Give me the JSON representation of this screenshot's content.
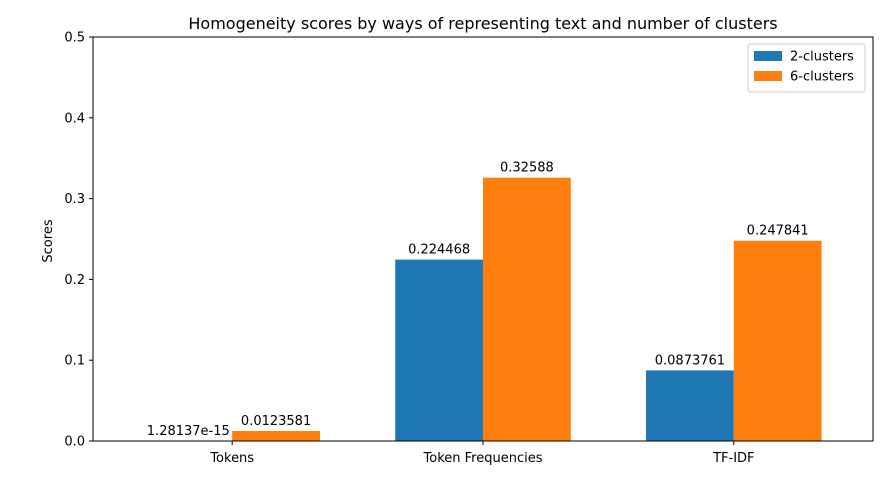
{
  "chart_data": {
    "type": "bar",
    "title": "Homogeneity scores by ways of representing text and number of clusters",
    "xlabel": "",
    "ylabel": "Scores",
    "categories": [
      "Tokens",
      "Token Frequencies",
      "TF-IDF"
    ],
    "series": [
      {
        "name": "2-clusters",
        "color": "#1f77b4",
        "values": [
          1.28137e-15,
          0.224468,
          0.0873761
        ],
        "labels": [
          "1.28137e-15",
          "0.224468",
          "0.0873761"
        ]
      },
      {
        "name": "6-clusters",
        "color": "#ff7f0e",
        "values": [
          0.0123581,
          0.32588,
          0.247841
        ],
        "labels": [
          "0.0123581",
          "0.32588",
          "0.247841"
        ]
      }
    ],
    "ylim": [
      0,
      0.5
    ],
    "yticks": [
      0.0,
      0.1,
      0.2,
      0.3,
      0.4,
      0.5
    ],
    "ytick_labels": [
      "0.0",
      "0.1",
      "0.2",
      "0.3",
      "0.4",
      "0.5"
    ],
    "legend": "top-right",
    "grid": false
  }
}
